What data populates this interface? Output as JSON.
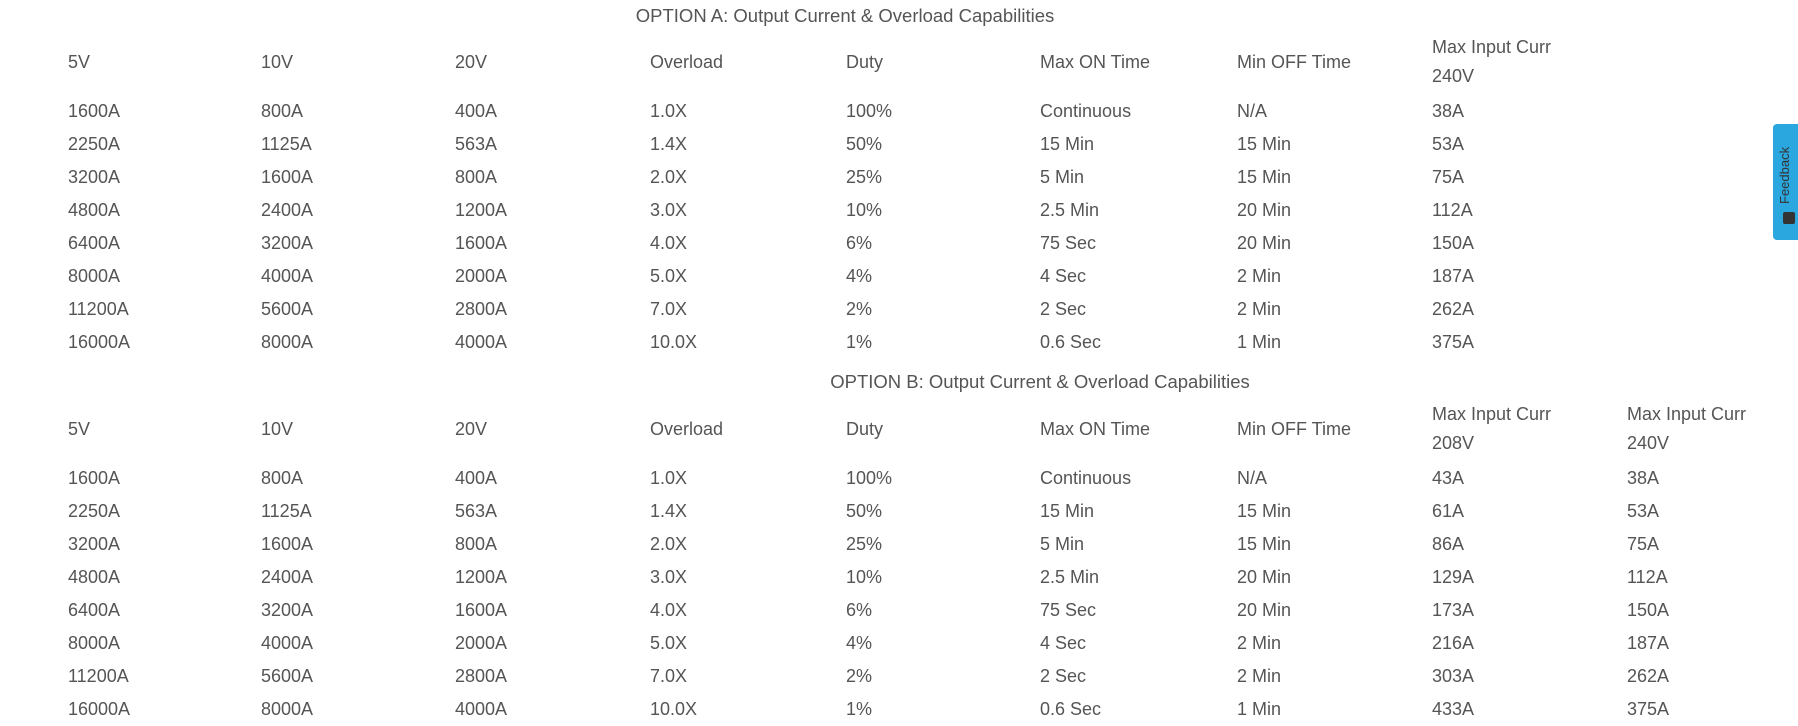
{
  "option_a": {
    "title": "OPTION A: Output Current & Overload Capabilities",
    "headers": [
      [
        "5V"
      ],
      [
        "10V"
      ],
      [
        "20V"
      ],
      [
        "Overload"
      ],
      [
        "Duty"
      ],
      [
        "Max ON Time"
      ],
      [
        "Min OFF Time"
      ],
      [
        "Max Input Curr",
        "240V"
      ]
    ],
    "rows": [
      [
        "1600A",
        "800A",
        "400A",
        "1.0X",
        "100%",
        "Continuous",
        "N/A",
        "38A"
      ],
      [
        "2250A",
        "1125A",
        "563A",
        "1.4X",
        "50%",
        "15 Min",
        "15 Min",
        "53A"
      ],
      [
        "3200A",
        "1600A",
        "800A",
        "2.0X",
        "25%",
        "5 Min",
        "15 Min",
        "75A"
      ],
      [
        "4800A",
        "2400A",
        "1200A",
        "3.0X",
        "10%",
        "2.5 Min",
        "20 Min",
        "112A"
      ],
      [
        "6400A",
        "3200A",
        "1600A",
        "4.0X",
        "6%",
        "75 Sec",
        "20 Min",
        "150A"
      ],
      [
        "8000A",
        "4000A",
        "2000A",
        "5.0X",
        "4%",
        "4 Sec",
        "2 Min",
        "187A"
      ],
      [
        "11200A",
        "5600A",
        "2800A",
        "7.0X",
        "2%",
        "2 Sec",
        "2 Min",
        "262A"
      ],
      [
        "16000A",
        "8000A",
        "4000A",
        "10.0X",
        "1%",
        "0.6 Sec",
        "1 Min",
        "375A"
      ]
    ]
  },
  "option_b": {
    "title": "OPTION B: Output Current & Overload Capabilities",
    "headers": [
      [
        "5V"
      ],
      [
        "10V"
      ],
      [
        "20V"
      ],
      [
        "Overload"
      ],
      [
        "Duty"
      ],
      [
        "Max ON Time"
      ],
      [
        "Min OFF Time"
      ],
      [
        "Max Input Curr",
        "208V"
      ],
      [
        "Max Input Curr",
        "240V"
      ]
    ],
    "rows": [
      [
        "1600A",
        "800A",
        "400A",
        "1.0X",
        "100%",
        "Continuous",
        "N/A",
        "43A",
        "38A"
      ],
      [
        "2250A",
        "1125A",
        "563A",
        "1.4X",
        "50%",
        "15 Min",
        "15 Min",
        "61A",
        "53A"
      ],
      [
        "3200A",
        "1600A",
        "800A",
        "2.0X",
        "25%",
        "5 Min",
        "15 Min",
        "86A",
        "75A"
      ],
      [
        "4800A",
        "2400A",
        "1200A",
        "3.0X",
        "10%",
        "2.5 Min",
        "20 Min",
        "129A",
        "112A"
      ],
      [
        "6400A",
        "3200A",
        "1600A",
        "4.0X",
        "6%",
        "75 Sec",
        "20 Min",
        "173A",
        "150A"
      ],
      [
        "8000A",
        "4000A",
        "2000A",
        "5.0X",
        "4%",
        "4 Sec",
        "2 Min",
        "216A",
        "187A"
      ],
      [
        "11200A",
        "5600A",
        "2800A",
        "7.0X",
        "2%",
        "2 Sec",
        "2 Min",
        "303A",
        "262A"
      ],
      [
        "16000A",
        "8000A",
        "4000A",
        "10.0X",
        "1%",
        "0.6 Sec",
        "1 Min",
        "433A",
        "375A"
      ]
    ]
  },
  "feedback": {
    "label": "Feedback",
    "icon": "feedback-icon",
    "color": "#2aa7df"
  }
}
